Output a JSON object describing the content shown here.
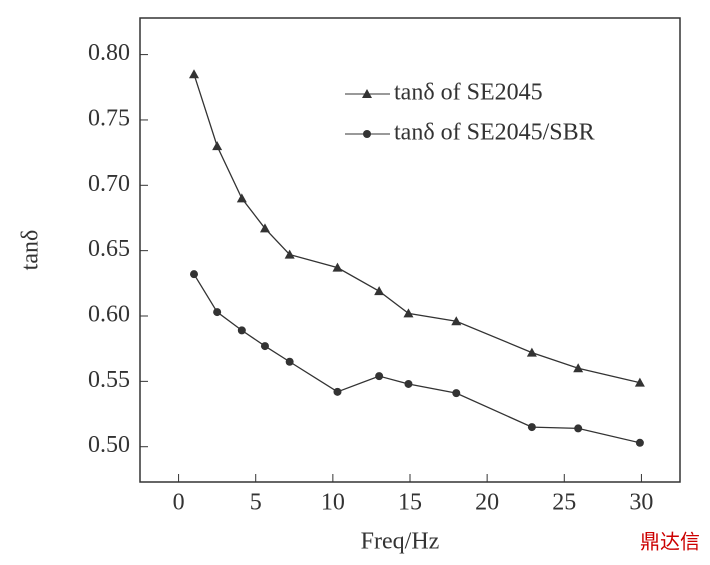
{
  "chart_data": {
    "type": "line",
    "xlabel": "Freq/Hz",
    "ylabel": "tanδ",
    "xlim": [
      -2.5,
      32.5
    ],
    "xticks": [
      0,
      5,
      10,
      15,
      20,
      25,
      30
    ],
    "ylim": [
      0.473,
      0.828
    ],
    "yticks": [
      {
        "value": 0.5,
        "label": "0.50"
      },
      {
        "value": 0.55,
        "label": "0.55"
      },
      {
        "value": 0.6,
        "label": "0.60"
      },
      {
        "value": 0.65,
        "label": "0.65"
      },
      {
        "value": 0.7,
        "label": "0.70"
      },
      {
        "value": 0.75,
        "label": "0.75"
      },
      {
        "value": 0.8,
        "label": "0.80"
      }
    ],
    "x": [
      1,
      2.5,
      4.1,
      5.6,
      7.2,
      10.3,
      13,
      14.9,
      18,
      22.9,
      25.9,
      29.9
    ],
    "series": [
      {
        "name": "tanδ of SE2045",
        "color": "#333333",
        "marker": "triangle",
        "values": [
          0.785,
          0.73,
          0.69,
          0.667,
          0.647,
          0.637,
          0.619,
          0.602,
          0.596,
          0.572,
          0.56,
          0.549
        ]
      },
      {
        "name": "tanδ of SE2045/SBR",
        "color": "#333333",
        "marker": "circle",
        "values": [
          0.632,
          0.603,
          0.589,
          0.577,
          0.565,
          0.542,
          0.554,
          0.548,
          0.541,
          0.515,
          0.514,
          0.503
        ]
      }
    ],
    "watermark": "鼎达信"
  }
}
